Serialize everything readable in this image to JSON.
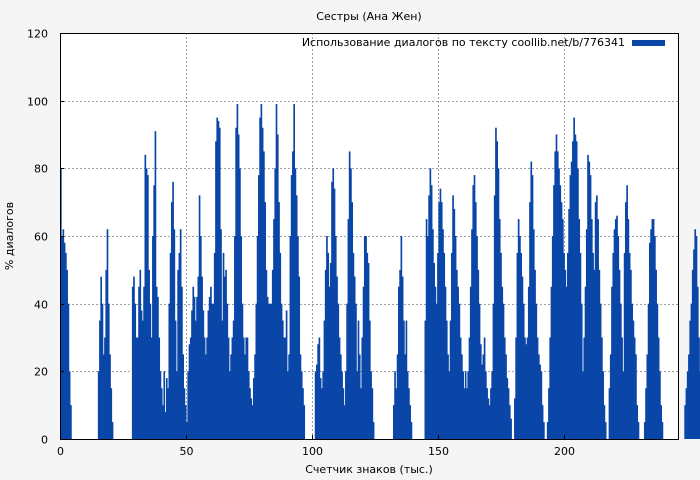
{
  "chart_data": {
    "type": "bar",
    "title": "Сестры (Ана Жен)",
    "xlabel": "Счетчик знаков (тыс.)",
    "ylabel": "% диалогов",
    "xlim": [
      0,
      245
    ],
    "ylim": [
      0,
      120
    ],
    "x_ticks": [
      0,
      50,
      100,
      150,
      200
    ],
    "y_ticks": [
      0,
      20,
      40,
      60,
      80,
      100,
      120
    ],
    "grid": true,
    "legend_position": "top-right",
    "series": [
      {
        "name": "Использование диалогов по тексту coollib.net/b/776341",
        "color": "#0a46a8",
        "x_step": 0.5,
        "values": [
          80,
          60,
          62,
          58,
          55,
          50,
          40,
          20,
          10,
          0,
          0,
          0,
          0,
          0,
          0,
          0,
          0,
          0,
          0,
          0,
          0,
          0,
          0,
          0,
          0,
          0,
          0,
          0,
          0,
          0,
          20,
          35,
          48,
          40,
          25,
          30,
          50,
          62,
          40,
          25,
          15,
          5,
          0,
          0,
          0,
          0,
          0,
          0,
          0,
          0,
          0,
          0,
          0,
          0,
          0,
          0,
          0,
          45,
          48,
          40,
          30,
          30,
          45,
          50,
          38,
          35,
          45,
          84,
          80,
          78,
          50,
          40,
          30,
          60,
          75,
          91,
          45,
          42,
          30,
          20,
          15,
          10,
          20,
          8,
          18,
          15,
          40,
          55,
          70,
          76,
          62,
          35,
          20,
          50,
          55,
          62,
          45,
          25,
          15,
          10,
          5,
          20,
          28,
          30,
          38,
          45,
          42,
          35,
          42,
          48,
          72,
          60,
          48,
          38,
          30,
          25,
          30,
          38,
          42,
          45,
          40,
          40,
          55,
          88,
          95,
          94,
          92,
          62,
          35,
          55,
          48,
          50,
          40,
          30,
          20,
          25,
          30,
          35,
          60,
          92,
          99,
          90,
          80,
          60,
          40,
          30,
          25,
          30,
          30,
          20,
          15,
          12,
          10,
          18,
          25,
          40,
          60,
          78,
          95,
          99,
          92,
          85,
          70,
          50,
          42,
          40,
          40,
          40,
          50,
          65,
          80,
          99,
          90,
          70,
          55,
          40,
          35,
          30,
          30,
          38,
          20,
          25,
          60,
          78,
          85,
          99,
          80,
          72,
          60,
          48,
          25,
          20,
          15,
          10,
          0,
          0,
          0,
          0,
          0,
          0,
          0,
          0,
          20,
          22,
          28,
          30,
          18,
          15,
          20,
          35,
          50,
          60,
          55,
          45,
          52,
          76,
          80,
          74,
          60,
          48,
          40,
          30,
          25,
          20,
          15,
          10,
          20,
          40,
          65,
          85,
          80,
          70,
          55,
          48,
          40,
          20,
          35,
          25,
          15,
          30,
          45,
          60,
          60,
          55,
          52,
          35,
          20,
          15,
          5,
          0,
          0,
          0,
          0,
          0,
          0,
          0,
          0,
          0,
          0,
          0,
          0,
          0,
          0,
          0,
          10,
          20,
          15,
          25,
          45,
          50,
          60,
          48,
          35,
          25,
          35,
          20,
          15,
          10,
          5,
          0,
          0,
          0,
          0,
          0,
          0,
          0,
          0,
          0,
          0,
          35,
          65,
          60,
          72,
          80,
          75,
          62,
          52,
          45,
          40,
          55,
          70,
          74,
          70,
          62,
          55,
          45,
          35,
          25,
          20,
          35,
          55,
          72,
          68,
          60,
          50,
          45,
          40,
          30,
          25,
          20,
          15,
          20,
          15,
          20,
          30,
          45,
          62,
          75,
          78,
          70,
          60,
          50,
          40,
          28,
          22,
          25,
          30,
          20,
          15,
          12,
          10,
          15,
          20,
          40,
          72,
          92,
          88,
          80,
          65,
          55,
          45,
          40,
          30,
          25,
          18,
          15,
          10,
          6,
          0,
          0,
          12,
          30,
          55,
          65,
          60,
          55,
          48,
          40,
          30,
          28,
          30,
          45,
          70,
          82,
          78,
          62,
          50,
          40,
          30,
          25,
          22,
          20,
          10,
          5,
          0,
          0,
          5,
          15,
          30,
          45,
          60,
          75,
          85,
          90,
          85,
          80,
          75,
          70,
          65,
          55,
          50,
          45,
          55,
          68,
          78,
          82,
          88,
          95,
          90,
          88,
          80,
          65,
          55,
          40,
          20,
          30,
          45,
          62,
          84,
          82,
          78,
          65,
          55,
          50,
          70,
          72,
          65,
          50,
          40,
          30,
          20,
          10,
          5,
          0,
          0,
          15,
          25,
          45,
          55,
          62,
          65,
          66,
          60,
          50,
          40,
          30,
          20,
          55,
          70,
          75,
          65,
          55,
          50,
          40,
          35,
          30,
          25,
          10,
          5,
          0,
          0,
          0,
          0,
          5,
          15,
          25,
          40,
          58,
          62,
          65,
          65,
          60,
          50,
          40,
          30,
          20,
          10,
          5,
          0,
          0,
          0,
          0,
          0,
          0,
          0,
          0,
          0,
          0,
          0,
          0,
          0,
          0,
          0,
          0,
          0,
          10,
          15,
          20,
          25,
          35,
          40,
          50,
          56,
          62,
          60,
          45,
          30,
          20,
          10,
          30,
          55,
          67,
          66,
          60,
          50,
          40,
          30,
          48,
          65,
          85,
          80,
          60
        ]
      }
    ]
  }
}
